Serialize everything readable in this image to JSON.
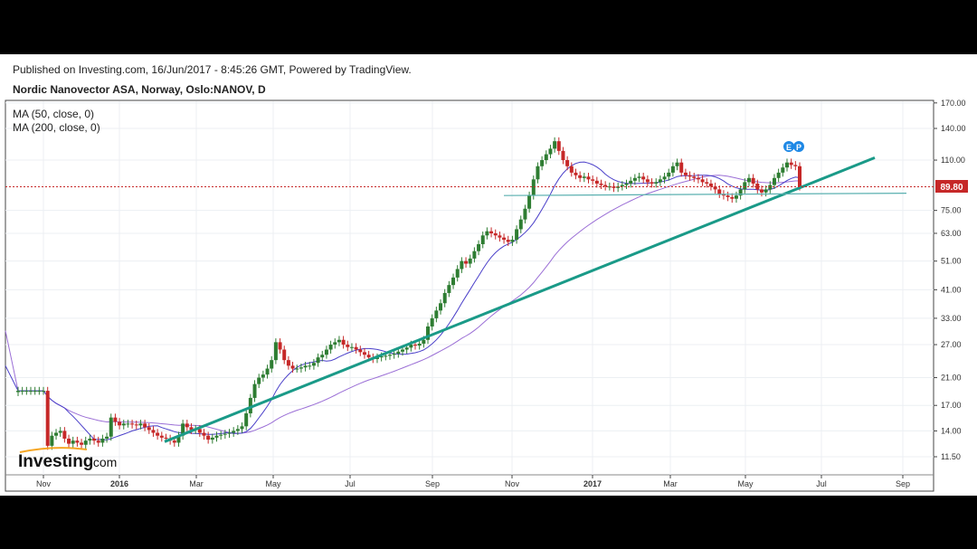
{
  "header": {
    "published": "Published on Investing.com, 16/Jun/2017 - 8:45:26 GMT, Powered by TradingView.",
    "symbol": "Nordic Nanovector ASA, Norway, Oslo:NANOV, D"
  },
  "indicators": [
    {
      "label": "MA (50, close, 0)",
      "color": "#4a3fc9"
    },
    {
      "label": "MA (200, close, 0)",
      "color": "#9b6fd6"
    }
  ],
  "logo": {
    "brand": "Investing",
    "suffix": ".com"
  },
  "event_markers": [
    "E",
    "P"
  ],
  "chart_data": {
    "type": "candlestick",
    "y_scale": "log",
    "y_ticks": [
      "170.00",
      "140.00",
      "110.00",
      "75.00",
      "63.00",
      "51.00",
      "41.00",
      "33.00",
      "27.00",
      "21.00",
      "17.00",
      "14.00",
      "11.50"
    ],
    "y_tick_values": [
      170,
      140,
      110,
      75,
      63,
      51,
      41,
      33,
      27,
      21,
      17,
      14,
      11.5
    ],
    "x_ticks": [
      "Nov",
      "2016",
      "Mar",
      "May",
      "Jul",
      "Sep",
      "Nov",
      "2017",
      "Mar",
      "May",
      "Jul",
      "Sep"
    ],
    "last_price": {
      "label": "89.80",
      "value": 89.8,
      "color": "#c62828"
    },
    "colors": {
      "up": "#2e7d32",
      "down": "#c62828",
      "trendline": "#1a9a88",
      "support": "#5ab0b0",
      "ma50": "#4a3fc9",
      "ma200": "#9b6fd6"
    },
    "closes": [
      19,
      19,
      19,
      19,
      19,
      19,
      19,
      12.5,
      13.5,
      13.8,
      14,
      13.2,
      12.7,
      13,
      12.8,
      12.6,
      13,
      13.2,
      13,
      12.8,
      13.2,
      13.4,
      15.5,
      15,
      14.6,
      14.8,
      14.8,
      14.7,
      14.6,
      14.8,
      14.4,
      14.1,
      13.8,
      13.5,
      13.3,
      13.2,
      13,
      12.8,
      13.5,
      14.8,
      14.4,
      14.1,
      14.2,
      13.8,
      13.5,
      13.1,
      13.3,
      13.5,
      13.6,
      13.7,
      13.8,
      14,
      14.2,
      14.5,
      16,
      18,
      20,
      21,
      21.5,
      22.5,
      24,
      27.5,
      26,
      24,
      23,
      22.5,
      22.5,
      22.7,
      23,
      23,
      23.5,
      24.5,
      25,
      26,
      27,
      27.5,
      28,
      27,
      26.5,
      26.5,
      26,
      25.5,
      25,
      24.5,
      24.2,
      24.5,
      24.7,
      24.8,
      25,
      25.2,
      25.6,
      26,
      26.4,
      27,
      26.8,
      27.2,
      28,
      31,
      33,
      35,
      37,
      40,
      42.5,
      45,
      48,
      51,
      50,
      52,
      55,
      58,
      62,
      64,
      63,
      62,
      61,
      60,
      59,
      60,
      65,
      70,
      76,
      84,
      95,
      105,
      110,
      115,
      120,
      127,
      118,
      110,
      105,
      100,
      98,
      96,
      97,
      95,
      94,
      92,
      91,
      90,
      90,
      89,
      90,
      91,
      92,
      94,
      96,
      97,
      95,
      93,
      92,
      93,
      95,
      97,
      100,
      105,
      108,
      100,
      98,
      97,
      96,
      95,
      93,
      92,
      90,
      88,
      85,
      84,
      83,
      82,
      84,
      88,
      93,
      96,
      92,
      88,
      86,
      88,
      91,
      96,
      100,
      104,
      108,
      106,
      105,
      90
    ]
  }
}
